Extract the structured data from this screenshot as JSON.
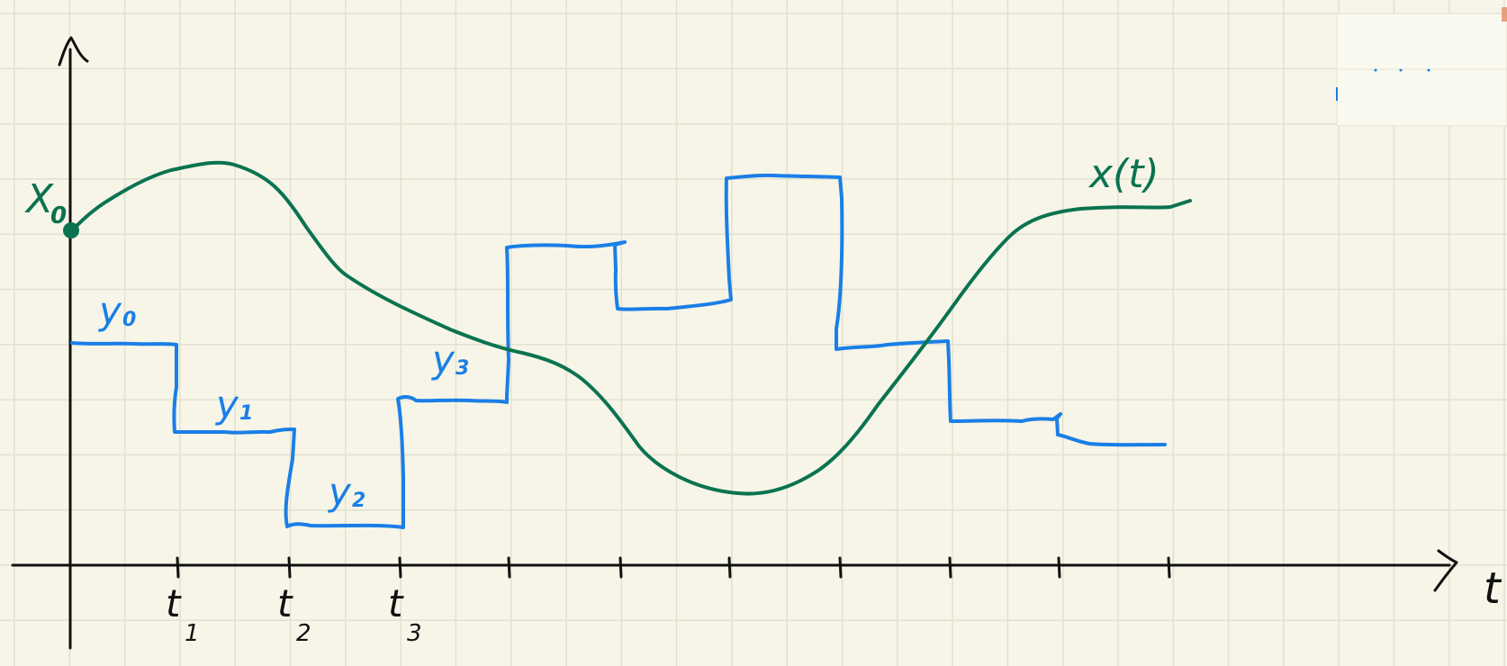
{
  "labels": {
    "x0": "X",
    "x0_sub": "0",
    "curve": "x(t)",
    "axis": "t"
  },
  "colors": {
    "paper": "#f7f5e8",
    "grid": "#e2e0cf",
    "axis": "#111111",
    "curve": "#0a7350",
    "steps": "#1a7fe6"
  },
  "ticks": [
    {
      "main": "t",
      "sub": "1"
    },
    {
      "main": "t",
      "sub": "2"
    },
    {
      "main": "t",
      "sub": "3"
    },
    {
      "main": "",
      "sub": ""
    },
    {
      "main": "",
      "sub": ""
    },
    {
      "main": "",
      "sub": ""
    },
    {
      "main": "",
      "sub": ""
    },
    {
      "main": "",
      "sub": ""
    },
    {
      "main": "",
      "sub": ""
    },
    {
      "main": "",
      "sub": ""
    }
  ],
  "step_labels": [
    {
      "main": "y",
      "sub": "0"
    },
    {
      "main": "y",
      "sub": "1"
    },
    {
      "main": "y",
      "sub": "2"
    },
    {
      "main": "y",
      "sub": "3"
    }
  ]
}
